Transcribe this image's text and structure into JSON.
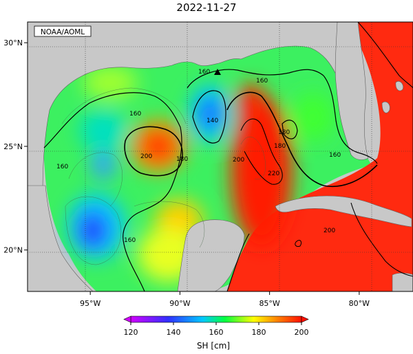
{
  "title": "2022-11-27",
  "credit": "NOAA/AOML",
  "map": {
    "lon_range": [
      -98.5,
      -77
    ],
    "lat_range": [
      18,
      31
    ],
    "lon_ticks": [
      {
        "value": -95,
        "label": "95°W"
      },
      {
        "value": -90,
        "label": "90°W"
      },
      {
        "value": -85,
        "label": "85°W"
      },
      {
        "value": -80,
        "label": "80°W"
      }
    ],
    "lat_ticks": [
      {
        "value": 30,
        "label": "30°N"
      },
      {
        "value": 25,
        "label": "25°N"
      },
      {
        "value": 20,
        "label": "20°N"
      }
    ],
    "grid": "dotted",
    "contour_levels": [
      160,
      180,
      200,
      220
    ],
    "contour_labels": [
      "160",
      "160",
      "160",
      "160",
      "160",
      "140",
      "180",
      "180",
      "180",
      "200",
      "200",
      "220",
      "200"
    ],
    "station_marker": "triangle"
  },
  "colorbar": {
    "label": "SH [cm]",
    "min": 120,
    "max": 200,
    "ticks": [
      "120",
      "140",
      "160",
      "180",
      "200"
    ],
    "colors": [
      "#d000ff",
      "#3030ff",
      "#00c0ff",
      "#00ff40",
      "#ffff00",
      "#ff8000",
      "#ff1000"
    ]
  }
}
